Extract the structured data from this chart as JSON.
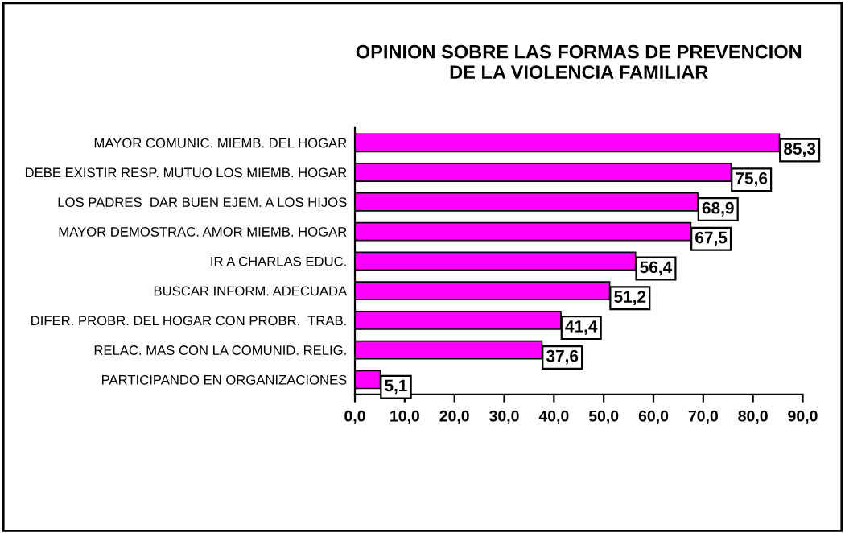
{
  "chart_data": {
    "type": "bar",
    "orientation": "horizontal",
    "title": "OPINION SOBRE LAS FORMAS DE PREVENCION\nDE LA VIOLENCIA FAMILIAR",
    "categories": [
      "MAYOR COMUNIC. MIEMB. DEL HOGAR",
      "DEBE EXISTIR RESP. MUTUO LOS MIEMB. HOGAR",
      "LOS PADRES  DAR BUEN EJEM. A LOS HIJOS",
      "MAYOR DEMOSTRAC. AMOR MIEMB. HOGAR",
      "IR A CHARLAS EDUC.",
      "BUSCAR INFORM. ADECUADA",
      "DIFER. PROBR. DEL HOGAR CON PROBR.  TRAB.",
      "RELAC. MAS CON LA COMUNID. RELIG.",
      "PARTICIPANDO EN ORGANIZACIONES"
    ],
    "values": [
      85.3,
      75.6,
      68.9,
      67.5,
      56.4,
      51.2,
      41.4,
      37.6,
      5.1
    ],
    "value_labels": [
      "85,3",
      "75,6",
      "68,9",
      "67,5",
      "56,4",
      "51,2",
      "41,4",
      "37,6",
      "5,1"
    ],
    "color": "#ff00ff",
    "xlim": [
      0,
      90
    ],
    "xticks": [
      {
        "value": 0,
        "label": "0,0"
      },
      {
        "value": 10,
        "label": "10,0"
      },
      {
        "value": 20,
        "label": "20,0"
      },
      {
        "value": 30,
        "label": "30,0"
      },
      {
        "value": 40,
        "label": "40,0"
      },
      {
        "value": 50,
        "label": "50,0"
      },
      {
        "value": 60,
        "label": "60,0"
      },
      {
        "value": 70,
        "label": "70,0"
      },
      {
        "value": 80,
        "label": "80,0"
      },
      {
        "value": 90,
        "label": "90,0"
      }
    ],
    "grid": false,
    "legend": false
  }
}
